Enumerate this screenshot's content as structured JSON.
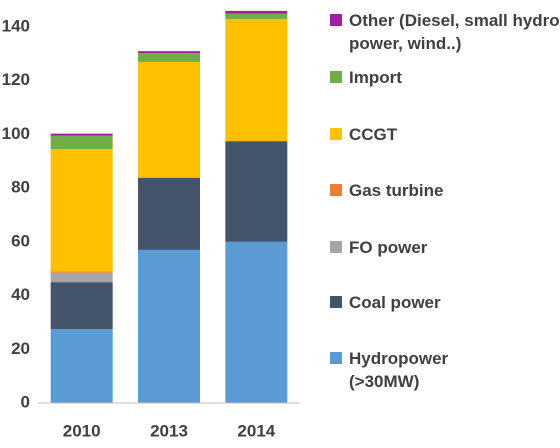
{
  "chart_data": {
    "type": "stacked_bar",
    "categories": [
      "2010",
      "2013",
      "2014"
    ],
    "series": [
      {
        "name": "Hydropower (>30MW)",
        "color": "#5b9bd5",
        "values": [
          27.5,
          57,
          60
        ]
      },
      {
        "name": "Coal power",
        "color": "#44546a",
        "values": [
          17.5,
          26.8,
          37.5
        ]
      },
      {
        "name": "FO power",
        "color": "#a5a5a5",
        "values": [
          3.5,
          0,
          0
        ]
      },
      {
        "name": "Gas turbine",
        "color": "#ed7d31",
        "values": [
          0.5,
          0.2,
          0
        ]
      },
      {
        "name": "CCGT",
        "color": "#ffc000",
        "values": [
          45.5,
          43,
          45.5
        ]
      },
      {
        "name": "Import",
        "color": "#70ad47",
        "values": [
          5,
          3.3,
          2
        ]
      },
      {
        "name": "Other (Diesel, small hydro power, wind..)",
        "color": "#a020a0",
        "values": [
          0.8,
          0.7,
          1
        ]
      }
    ],
    "ylim": [
      0,
      140
    ],
    "yticks": [
      0,
      20,
      40,
      60,
      80,
      100,
      120,
      140
    ],
    "grid": false
  }
}
